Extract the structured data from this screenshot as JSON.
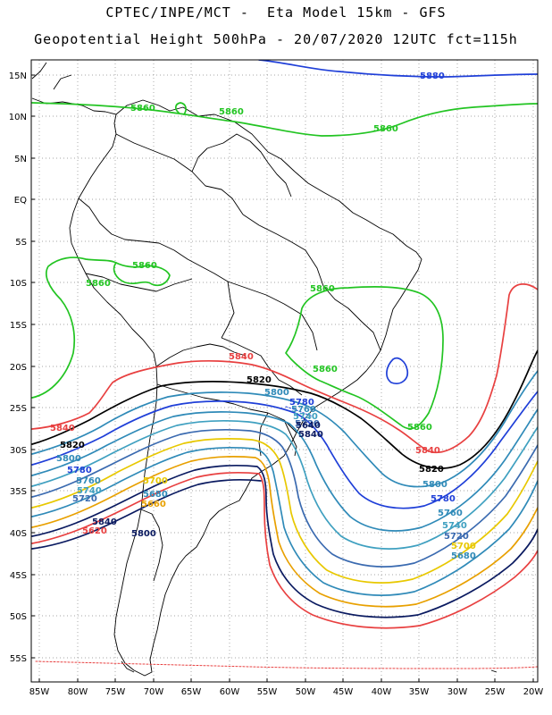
{
  "title_line1": "CPTEC/INPE/MCT -  Eta Model 15km - GFS",
  "title_line2": "Geopotential Height 500hPa - 20/07/2020 12UTC fct=115h",
  "lat_labels": [
    "15N",
    "10N",
    "5N",
    "EQ",
    "5S",
    "10S",
    "15S",
    "20S",
    "25S",
    "30S",
    "35S",
    "40S",
    "45S",
    "50S",
    "55S"
  ],
  "lon_labels": [
    "85W",
    "80W",
    "75W",
    "70W",
    "65W",
    "60W",
    "55W",
    "50W",
    "45W",
    "40W",
    "35W",
    "30W",
    "25W",
    "20W"
  ],
  "contour_labels": [
    {
      "text": "5880",
      "color": "#1f3fd8"
    },
    {
      "text": "5860",
      "color": "#22c422"
    },
    {
      "text": "5860",
      "color": "#22c422"
    },
    {
      "text": "5860",
      "color": "#22c422"
    },
    {
      "text": "5860",
      "color": "#22c422"
    },
    {
      "text": "5860",
      "color": "#22c422"
    },
    {
      "text": "5860",
      "color": "#22c422"
    },
    {
      "text": "5860",
      "color": "#22c422"
    },
    {
      "text": "5860",
      "color": "#22c422"
    },
    {
      "text": "5840",
      "color": "#e84040"
    },
    {
      "text": "5840",
      "color": "#e84040"
    },
    {
      "text": "5840",
      "color": "#e84040"
    },
    {
      "text": "5840",
      "color": "#0a1a60"
    },
    {
      "text": "5840",
      "color": "#0a1a60"
    },
    {
      "text": "5820",
      "color": "#000000"
    },
    {
      "text": "5820",
      "color": "#000000"
    },
    {
      "text": "5820",
      "color": "#000000"
    },
    {
      "text": "5800",
      "color": "#2f8ab8"
    },
    {
      "text": "5800",
      "color": "#2f8ab8"
    },
    {
      "text": "5800",
      "color": "#2f8ab8"
    },
    {
      "text": "5800",
      "color": "#0a1a60"
    },
    {
      "text": "5780",
      "color": "#1f3fd8"
    },
    {
      "text": "5780",
      "color": "#1f3fd8"
    },
    {
      "text": "5780",
      "color": "#1f3fd8"
    },
    {
      "text": "5760",
      "color": "#2f8ab8"
    },
    {
      "text": "5760",
      "color": "#2f8ab8"
    },
    {
      "text": "5760",
      "color": "#2f8ab8"
    },
    {
      "text": "5740",
      "color": "#3fa0c0"
    },
    {
      "text": "5740",
      "color": "#3fa0c0"
    },
    {
      "text": "5740",
      "color": "#3fa0c0"
    },
    {
      "text": "5720",
      "color": "#3a6ab0"
    },
    {
      "text": "5720",
      "color": "#3a6ab0"
    },
    {
      "text": "5720",
      "color": "#3a6ab0"
    },
    {
      "text": "5700",
      "color": "#e8c800"
    },
    {
      "text": "5700",
      "color": "#e8c800"
    },
    {
      "text": "5680",
      "color": "#2f8ab8"
    },
    {
      "text": "5680",
      "color": "#2f8ab8"
    },
    {
      "text": "5660",
      "color": "#e8a000"
    },
    {
      "text": "5640",
      "color": "#0a1a60"
    },
    {
      "text": "5620",
      "color": "#e84040"
    }
  ]
}
